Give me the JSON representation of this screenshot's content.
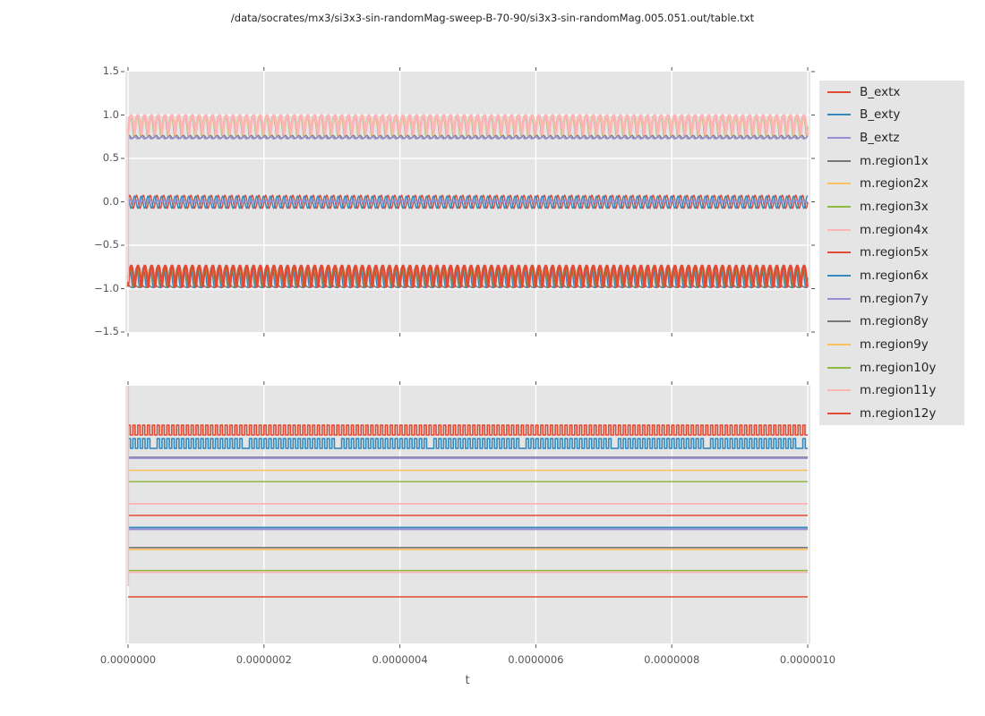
{
  "title": "/data/socrates/mx3/si3x3-sin-randomMag-sweep-B-70-90/si3x3-sin-randomMag.005.051.out/table.txt",
  "style": {
    "figure_bg": "#ffffff",
    "axes_bg": "#e5e5e5",
    "grid_color": "#ffffff",
    "tick_color": "#555555",
    "label_color": "#555555",
    "title_color": "#262626",
    "legend_bg": "#e5e5e5",
    "legend_text": "#262626"
  },
  "palette": {
    "red": "#e24a33",
    "blue": "#348abd",
    "purple": "#988ed5",
    "gray": "#777777",
    "orange": "#fbc15e",
    "green": "#8eba42",
    "pink": "#ffb5b8"
  },
  "legend": {
    "entries": [
      {
        "label": "B_extx",
        "color": "#e24a33"
      },
      {
        "label": "B_exty",
        "color": "#348abd"
      },
      {
        "label": "B_extz",
        "color": "#988ed5"
      },
      {
        "label": "m.region1x",
        "color": "#777777"
      },
      {
        "label": "m.region2x",
        "color": "#fbc15e"
      },
      {
        "label": "m.region3x",
        "color": "#8eba42"
      },
      {
        "label": "m.region4x",
        "color": "#ffb5b8"
      },
      {
        "label": "m.region5x",
        "color": "#e24a33"
      },
      {
        "label": "m.region6x",
        "color": "#348abd"
      },
      {
        "label": "m.region7y",
        "color": "#988ed5"
      },
      {
        "label": "m.region8y",
        "color": "#777777"
      },
      {
        "label": "m.region9y",
        "color": "#fbc15e"
      },
      {
        "label": "m.region10y",
        "color": "#8eba42"
      },
      {
        "label": "m.region11y",
        "color": "#ffb5b8"
      },
      {
        "label": "m.region12y",
        "color": "#e24a33"
      }
    ]
  },
  "chart_data": {
    "type": "line",
    "title": "/data/socrates/mx3/si3x3-sin-randomMag-sweep-B-70-90/si3x3-sin-randomMag.005.051.out/table.txt",
    "xlabel": "t",
    "x_axis": {
      "label": "t",
      "tick_labels": [
        "0.0000000",
        "0.0000002",
        "0.0000004",
        "0.0000006",
        "0.0000008",
        "0.0000010"
      ],
      "tick_values": [
        0,
        0.2,
        0.4,
        0.6,
        0.8,
        1.0
      ],
      "xlim_t_seconds": [
        0,
        1e-06
      ]
    },
    "top_plot": {
      "ylim": [
        -1.5,
        1.5
      ],
      "y_tick_labels": [
        "1.5",
        "1.0",
        "0.5",
        "0.0",
        "−0.5",
        "−1.0",
        "−1.5"
      ],
      "y_tick_values": [
        1.5,
        1.0,
        0.5,
        0.0,
        -0.5,
        -1.0,
        -1.5
      ],
      "grid_y_values": [
        1.0,
        0.5,
        0.0,
        -0.5,
        -1.0
      ],
      "description": "Three oscillation bands: upper band 0.73..1.0 (pink/orange/green/purple/gray), middle band ±0.08 around 0 (red/blue/purple sinusoids ~100 cycles), lower band -0.73..-1.0 (red/blue/green humps)",
      "series": [
        {
          "name": "upper-gray",
          "color": "#777777",
          "shape": "sine",
          "mean": 0.747,
          "amp": 0.018,
          "cycles": 100,
          "phase": 0.8,
          "lw": 1.4
        },
        {
          "name": "upper-purple",
          "color": "#988ed5",
          "shape": "sine",
          "mean": 0.737,
          "amp": 0.012,
          "cycles": 100,
          "phase": 2.0,
          "lw": 1.4
        },
        {
          "name": "upper-orange",
          "color": "#fbc15e",
          "shape": "humps",
          "base": 0.77,
          "peak": 1.005,
          "cycles": 100,
          "phase": 0.0,
          "lw": 1.5
        },
        {
          "name": "upper-green",
          "color": "#8eba42",
          "shape": "humps",
          "base": 0.745,
          "peak": 0.995,
          "cycles": 100,
          "phase": 0.5,
          "lw": 1.5
        },
        {
          "name": "upper-pink",
          "color": "#ffb5b8",
          "shape": "humps",
          "base": 0.765,
          "peak": 0.998,
          "cycles": 100,
          "phase": 0.15,
          "lw": 2.6
        },
        {
          "name": "lower-gray",
          "color": "#777777",
          "shape": "sine",
          "mean": -0.975,
          "amp": 0.012,
          "cycles": 100,
          "phase": 1.2,
          "lw": 1.4
        },
        {
          "name": "lower-blue",
          "color": "#348abd",
          "shape": "sine",
          "mean": -0.875,
          "amp": 0.115,
          "cycles": 100,
          "phase": 0.0,
          "lw": 1.6
        },
        {
          "name": "lower-green",
          "color": "#8eba42",
          "shape": "humps",
          "base": -1.0,
          "peak": -0.748,
          "cycles": 100,
          "phase": 0.5,
          "lw": 1.5
        },
        {
          "name": "lower-red",
          "color": "#e24a33",
          "shape": "humps",
          "base": -1.005,
          "peak": -0.735,
          "cycles": 100,
          "phase": 0.1,
          "lw": 2.6
        },
        {
          "name": "mid-red",
          "color": "#e24a33",
          "shape": "sine",
          "mean": 0.0,
          "amp": 0.075,
          "cycles": 100,
          "phase": 0.0,
          "lw": 1.5
        },
        {
          "name": "mid-blue",
          "color": "#348abd",
          "shape": "sine",
          "mean": -0.004,
          "amp": 0.07,
          "cycles": 100,
          "phase": 1.9,
          "lw": 1.5
        },
        {
          "name": "mid-purple",
          "color": "#988ed5",
          "shape": "sine",
          "mean": 0.004,
          "amp": 0.012,
          "cycles": 100,
          "phase": 0.0,
          "lw": 1.6
        },
        {
          "name": "pink-initial-transient",
          "color": "#ffb5b8",
          "shape": "vline",
          "x": 0.0005,
          "from": 0.98,
          "to": -0.92,
          "lw": 1.5
        }
      ]
    },
    "bottom_plot": {
      "y_tick_labels": [],
      "description": "No y tick labels. Two square waves at top (red above blue, ~140 cycles) and eleven constant horizontal lines; levels given as fraction of plot height from top",
      "series": [
        {
          "name": "square-red",
          "color": "#e24a33",
          "shape": "square",
          "high": 0.153,
          "low": 0.191,
          "cycles": 140,
          "duty": 0.45,
          "lw": 1.6,
          "dropout": 0
        },
        {
          "name": "square-blue",
          "color": "#348abd",
          "shape": "square",
          "high": 0.205,
          "low": 0.243,
          "cycles": 140,
          "duty": 0.5,
          "lw": 1.6,
          "dropout": 19
        },
        {
          "name": "flat-gray-1",
          "color": "#777777",
          "shape": "flat",
          "level": 0.277,
          "lw": 1.4
        },
        {
          "name": "flat-purple-1",
          "color": "#988ed5",
          "shape": "flat",
          "level": 0.281,
          "lw": 2.0
        },
        {
          "name": "flat-orange-1",
          "color": "#fbc15e",
          "shape": "flat",
          "level": 0.328,
          "lw": 1.5
        },
        {
          "name": "flat-green-1",
          "color": "#8eba42",
          "shape": "flat",
          "level": 0.372,
          "lw": 1.5
        },
        {
          "name": "flat-pink-1",
          "color": "#ffb5b8",
          "shape": "flat",
          "level": 0.458,
          "lw": 1.8
        },
        {
          "name": "flat-red-1",
          "color": "#e24a33",
          "shape": "flat",
          "level": 0.503,
          "lw": 1.5
        },
        {
          "name": "flat-purple-2",
          "color": "#988ed5",
          "shape": "flat",
          "level": 0.557,
          "lw": 2.0
        },
        {
          "name": "flat-blue-2",
          "color": "#348abd",
          "shape": "flat",
          "level": 0.55,
          "lw": 1.8
        },
        {
          "name": "flat-orange-2",
          "color": "#fbc15e",
          "shape": "flat",
          "level": 0.635,
          "lw": 1.8
        },
        {
          "name": "flat-gray-2",
          "color": "#777777",
          "shape": "flat",
          "level": 0.628,
          "lw": 1.6
        },
        {
          "name": "flat-pink-2",
          "color": "#ffb5b8",
          "shape": "flat",
          "level": 0.724,
          "lw": 1.8
        },
        {
          "name": "flat-green-2",
          "color": "#8eba42",
          "shape": "flat",
          "level": 0.717,
          "lw": 1.5
        },
        {
          "name": "flat-red-2",
          "color": "#e24a33",
          "shape": "flat",
          "level": 0.819,
          "lw": 1.5
        },
        {
          "name": "pink-initial-transient",
          "color": "#ffb5b8",
          "shape": "vline",
          "x": 0.0005,
          "from": 0.0,
          "to": 0.778,
          "lw": 1.5
        }
      ]
    }
  }
}
